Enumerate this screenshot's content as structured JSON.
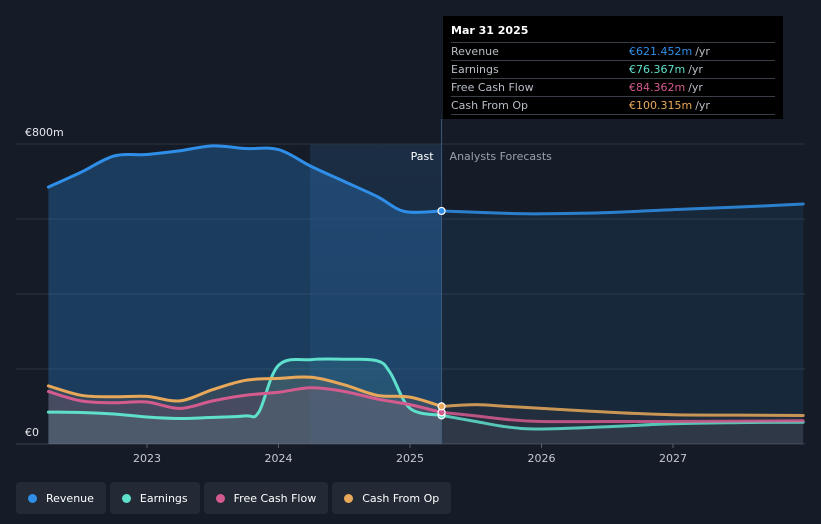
{
  "chart_data": {
    "type": "line",
    "x_ticks": [
      2023,
      2024,
      2025,
      2026,
      2027
    ],
    "ylim": [
      0,
      800
    ],
    "y_labels": {
      "top": "€800m",
      "bottom": "€0"
    },
    "grid": true,
    "divider_x": 2025.24,
    "forecast_shade_start": 2024.24,
    "period_labels": {
      "past": "Past",
      "forecast": "Analysts Forecasts"
    },
    "colors": {
      "Revenue": "#2f8fe8",
      "Earnings": "#5ee0cc",
      "Free Cash Flow": "#d45b8e",
      "Cash From Op": "#e8a85a"
    },
    "series": [
      {
        "name": "Revenue",
        "points": [
          [
            2022.25,
            685
          ],
          [
            2022.5,
            725
          ],
          [
            2022.75,
            768
          ],
          [
            2023.0,
            772
          ],
          [
            2023.25,
            782
          ],
          [
            2023.5,
            795
          ],
          [
            2023.75,
            788
          ],
          [
            2024.0,
            785
          ],
          [
            2024.25,
            740
          ],
          [
            2024.5,
            700
          ],
          [
            2024.75,
            660
          ],
          [
            2024.96,
            620
          ],
          [
            2025.24,
            621.452
          ],
          [
            2025.5,
            618
          ],
          [
            2025.75,
            615
          ],
          [
            2026.0,
            614
          ],
          [
            2026.5,
            617
          ],
          [
            2027.0,
            625
          ],
          [
            2027.5,
            632
          ],
          [
            2027.99,
            640
          ]
        ]
      },
      {
        "name": "Earnings",
        "points": [
          [
            2022.25,
            85
          ],
          [
            2022.5,
            84
          ],
          [
            2022.75,
            80
          ],
          [
            2023.0,
            72
          ],
          [
            2023.25,
            68
          ],
          [
            2023.5,
            71
          ],
          [
            2023.75,
            75
          ],
          [
            2023.85,
            85
          ],
          [
            2024.0,
            210
          ],
          [
            2024.25,
            225
          ],
          [
            2024.5,
            226
          ],
          [
            2024.75,
            222
          ],
          [
            2024.85,
            190
          ],
          [
            2025.0,
            95
          ],
          [
            2025.24,
            76.367
          ],
          [
            2025.5,
            60
          ],
          [
            2025.75,
            45
          ],
          [
            2026.0,
            40
          ],
          [
            2026.5,
            46
          ],
          [
            2027.0,
            54
          ],
          [
            2027.5,
            57
          ],
          [
            2027.99,
            58
          ]
        ]
      },
      {
        "name": "Free Cash Flow",
        "points": [
          [
            2022.25,
            140
          ],
          [
            2022.5,
            115
          ],
          [
            2022.75,
            110
          ],
          [
            2023.0,
            112
          ],
          [
            2023.25,
            95
          ],
          [
            2023.5,
            115
          ],
          [
            2023.75,
            130
          ],
          [
            2024.0,
            138
          ],
          [
            2024.25,
            150
          ],
          [
            2024.5,
            140
          ],
          [
            2024.75,
            120
          ],
          [
            2025.0,
            105
          ],
          [
            2025.24,
            84.362
          ],
          [
            2025.5,
            75
          ],
          [
            2025.75,
            65
          ],
          [
            2026.0,
            60
          ],
          [
            2026.5,
            60
          ],
          [
            2027.0,
            60
          ],
          [
            2027.5,
            61
          ],
          [
            2027.99,
            62
          ]
        ]
      },
      {
        "name": "Cash From Op",
        "points": [
          [
            2022.25,
            155
          ],
          [
            2022.5,
            130
          ],
          [
            2022.75,
            126
          ],
          [
            2023.0,
            127
          ],
          [
            2023.25,
            115
          ],
          [
            2023.5,
            145
          ],
          [
            2023.75,
            170
          ],
          [
            2024.0,
            175
          ],
          [
            2024.25,
            178
          ],
          [
            2024.5,
            158
          ],
          [
            2024.75,
            130
          ],
          [
            2025.0,
            125
          ],
          [
            2025.24,
            100.315
          ],
          [
            2025.5,
            105
          ],
          [
            2025.75,
            100
          ],
          [
            2026.0,
            95
          ],
          [
            2026.5,
            85
          ],
          [
            2027.0,
            78
          ],
          [
            2027.5,
            77
          ],
          [
            2027.99,
            76
          ]
        ]
      }
    ]
  },
  "tooltip": {
    "date": "Mar 31 2025",
    "rows": [
      {
        "label": "Revenue",
        "value": "€621.452m",
        "unit": "/yr"
      },
      {
        "label": "Earnings",
        "value": "€76.367m",
        "unit": "/yr"
      },
      {
        "label": "Free Cash Flow",
        "value": "€84.362m",
        "unit": "/yr"
      },
      {
        "label": "Cash From Op",
        "value": "€100.315m",
        "unit": "/yr"
      }
    ]
  },
  "legend": [
    {
      "label": "Revenue"
    },
    {
      "label": "Earnings"
    },
    {
      "label": "Free Cash Flow"
    },
    {
      "label": "Cash From Op"
    }
  ]
}
